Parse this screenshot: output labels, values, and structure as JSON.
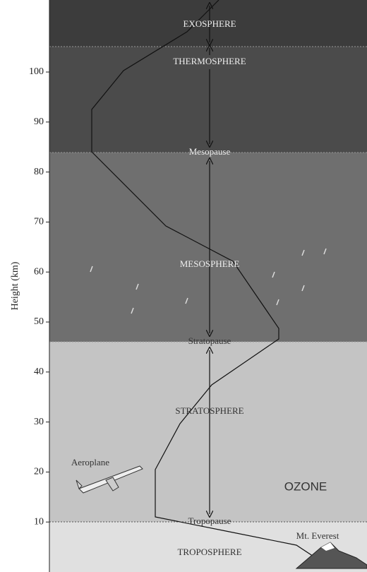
{
  "axis": {
    "label": "Height (km)",
    "ticks": [
      10,
      20,
      30,
      40,
      50,
      60,
      70,
      80,
      90,
      100
    ]
  },
  "layers": {
    "exosphere": "EXOSPHERE",
    "thermosphere": "THERMOSPHERE",
    "mesopause": "Mesopause",
    "mesosphere": "MESOSPHERE",
    "stratopause": "Stratopause",
    "stratosphere": "STRATOSPHERE",
    "tropopause": "Tropopause",
    "troposphere": "TROPOSPHERE"
  },
  "annotations": {
    "aeroplane": "Aeroplane",
    "ozone": "OZONE",
    "everest": "Mt. Everest"
  }
}
